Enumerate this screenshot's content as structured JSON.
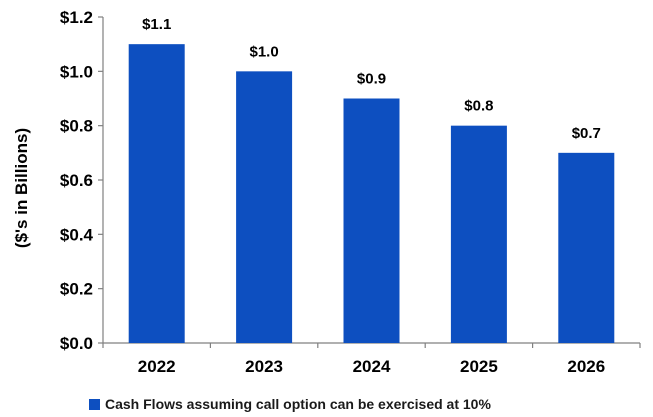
{
  "chart_data": {
    "type": "bar",
    "categories": [
      "2022",
      "2023",
      "2024",
      "2025",
      "2026"
    ],
    "series": [
      {
        "name": "Cash Flows assuming call option can be exercised at 10%",
        "values": [
          1.1,
          1.0,
          0.9,
          0.8,
          0.7
        ]
      }
    ],
    "data_labels": [
      "$1.1",
      "$1.0",
      "$0.9",
      "$0.8",
      "$0.7"
    ],
    "ylabel": "($'s in Billions)",
    "xlabel": "",
    "ylim": [
      0,
      1.2
    ],
    "yticks": [
      0,
      0.2,
      0.4,
      0.6,
      0.8,
      1.0,
      1.2
    ],
    "ytick_labels": [
      "$0.0",
      "$0.2",
      "$0.4",
      "$0.6",
      "$0.8",
      "$1.0",
      "$1.2"
    ],
    "grid": false,
    "legend_position": "bottom",
    "colors": {
      "bar": "#0d4fc0",
      "axis": "#808080"
    }
  }
}
